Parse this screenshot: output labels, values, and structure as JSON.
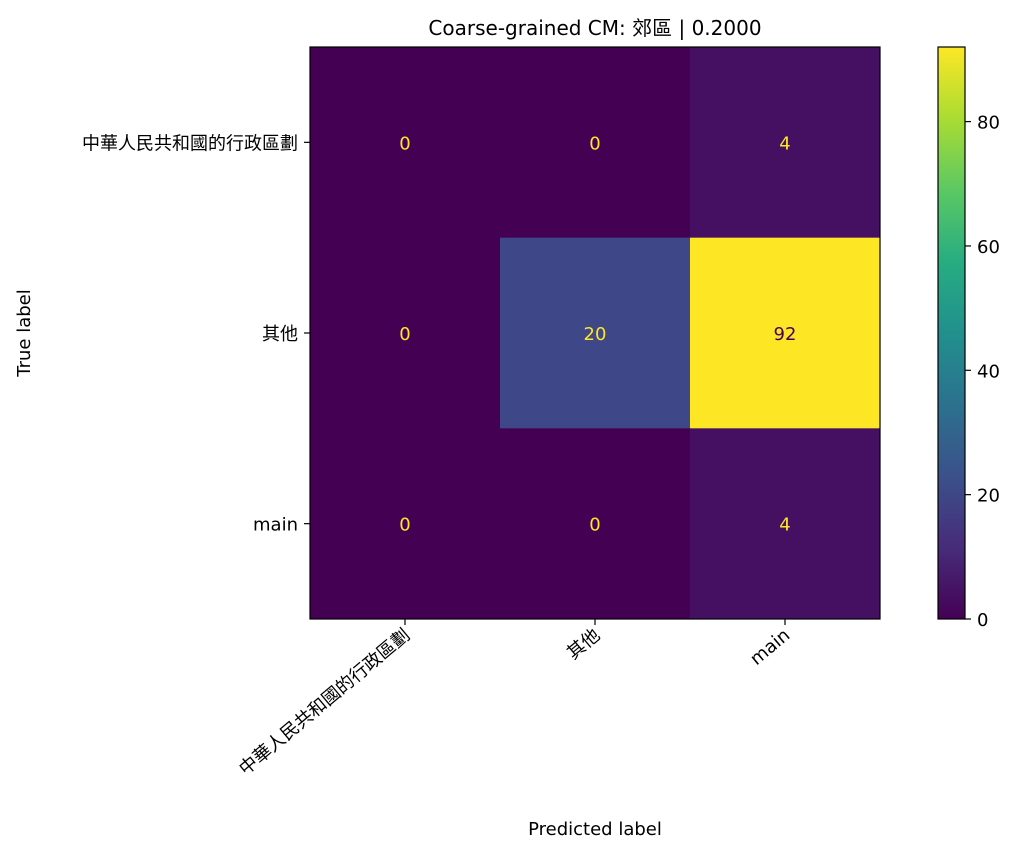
{
  "chart_data": {
    "type": "heatmap",
    "title": "Coarse-grained CM: 郊區 | 0.2000",
    "xlabel": "Predicted label",
    "ylabel": "True label",
    "x_categories": [
      "中華人民共和國的行政區劃",
      "其他",
      "main"
    ],
    "y_categories": [
      "中華人民共和國的行政區劃",
      "其他",
      "main"
    ],
    "matrix": [
      [
        0,
        0,
        4
      ],
      [
        0,
        20,
        92
      ],
      [
        0,
        0,
        4
      ]
    ],
    "colormap": "viridis",
    "colorbar": {
      "vmin": 0,
      "vmax": 92,
      "ticks": [
        0,
        20,
        40,
        60,
        80
      ]
    },
    "grid": false
  }
}
